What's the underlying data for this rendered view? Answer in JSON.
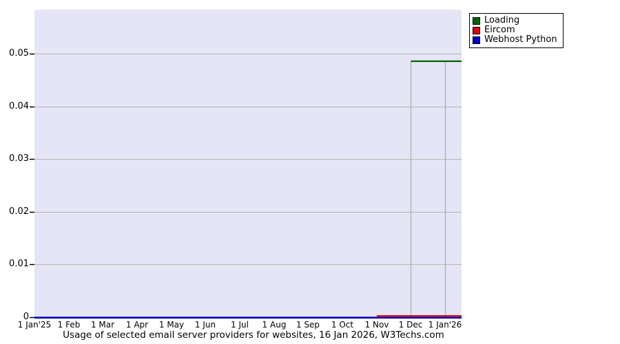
{
  "title": "Usage of selected email server providers for websites, 16 Jan 2026, W3Techs.com",
  "legend": {
    "position": "top-right-outside",
    "entries": [
      "Loading",
      "Eircom",
      "Webhost Python"
    ]
  },
  "colors": {
    "plot_background": "#e5e5f6",
    "gridline": "#b4b4b4",
    "drop_line": "#b4b4b4",
    "axis": "#000000",
    "legend_border": "#000000",
    "legend_background": "#ffffff",
    "text": "#000000"
  },
  "chart_data": {
    "type": "line",
    "title": "Usage of selected email server providers for websites, 16 Jan 2026, W3Techs.com",
    "xlabel": "",
    "ylabel": "",
    "grid": "horizontal-only",
    "legend_position": "top-right-outside",
    "x_axis": {
      "unit": "months since 1 Jan 2025",
      "range": [
        0,
        12.48
      ],
      "ticks": [
        {
          "label": "1 Jan'25",
          "x": 0
        },
        {
          "label": "1 Feb",
          "x": 1
        },
        {
          "label": "1 Mar",
          "x": 2
        },
        {
          "label": "1 Apr",
          "x": 3
        },
        {
          "label": "1 May",
          "x": 4
        },
        {
          "label": "1 Jun",
          "x": 5
        },
        {
          "label": "1 Jul",
          "x": 6
        },
        {
          "label": "1 Aug",
          "x": 7
        },
        {
          "label": "1 Sep",
          "x": 8
        },
        {
          "label": "1 Oct",
          "x": 9
        },
        {
          "label": "1 Nov",
          "x": 10
        },
        {
          "label": "1 Dec",
          "x": 11
        },
        {
          "label": "1 Jan'26",
          "x": 12
        }
      ]
    },
    "y_axis": {
      "unit": "percent of websites",
      "range": [
        0,
        0.0584
      ],
      "ticks": [
        {
          "label": "0",
          "y": 0
        },
        {
          "label": "0.01",
          "y": 0.01
        },
        {
          "label": "0.02",
          "y": 0.02
        },
        {
          "label": "0.03",
          "y": 0.03
        },
        {
          "label": "0.04",
          "y": 0.04
        },
        {
          "label": "0.05",
          "y": 0.05
        }
      ]
    },
    "series": [
      {
        "name": "Webhost Python",
        "color": "#0000cc",
        "points": [
          [
            0,
            0
          ],
          [
            12.48,
            0
          ]
        ]
      },
      {
        "name": "Eircom",
        "color": "#e00000",
        "points": [
          [
            10,
            0
          ],
          [
            12.48,
            0
          ]
        ]
      },
      {
        "name": "Loading",
        "color": "#006400",
        "points": [
          [
            11,
            0.0486
          ],
          [
            12.48,
            0.0486
          ]
        ]
      }
    ],
    "drop_lines": [
      {
        "x": 11,
        "from": 0.0486,
        "to": 0
      },
      {
        "x": 12,
        "from": 0.0486,
        "to": 0
      }
    ]
  }
}
